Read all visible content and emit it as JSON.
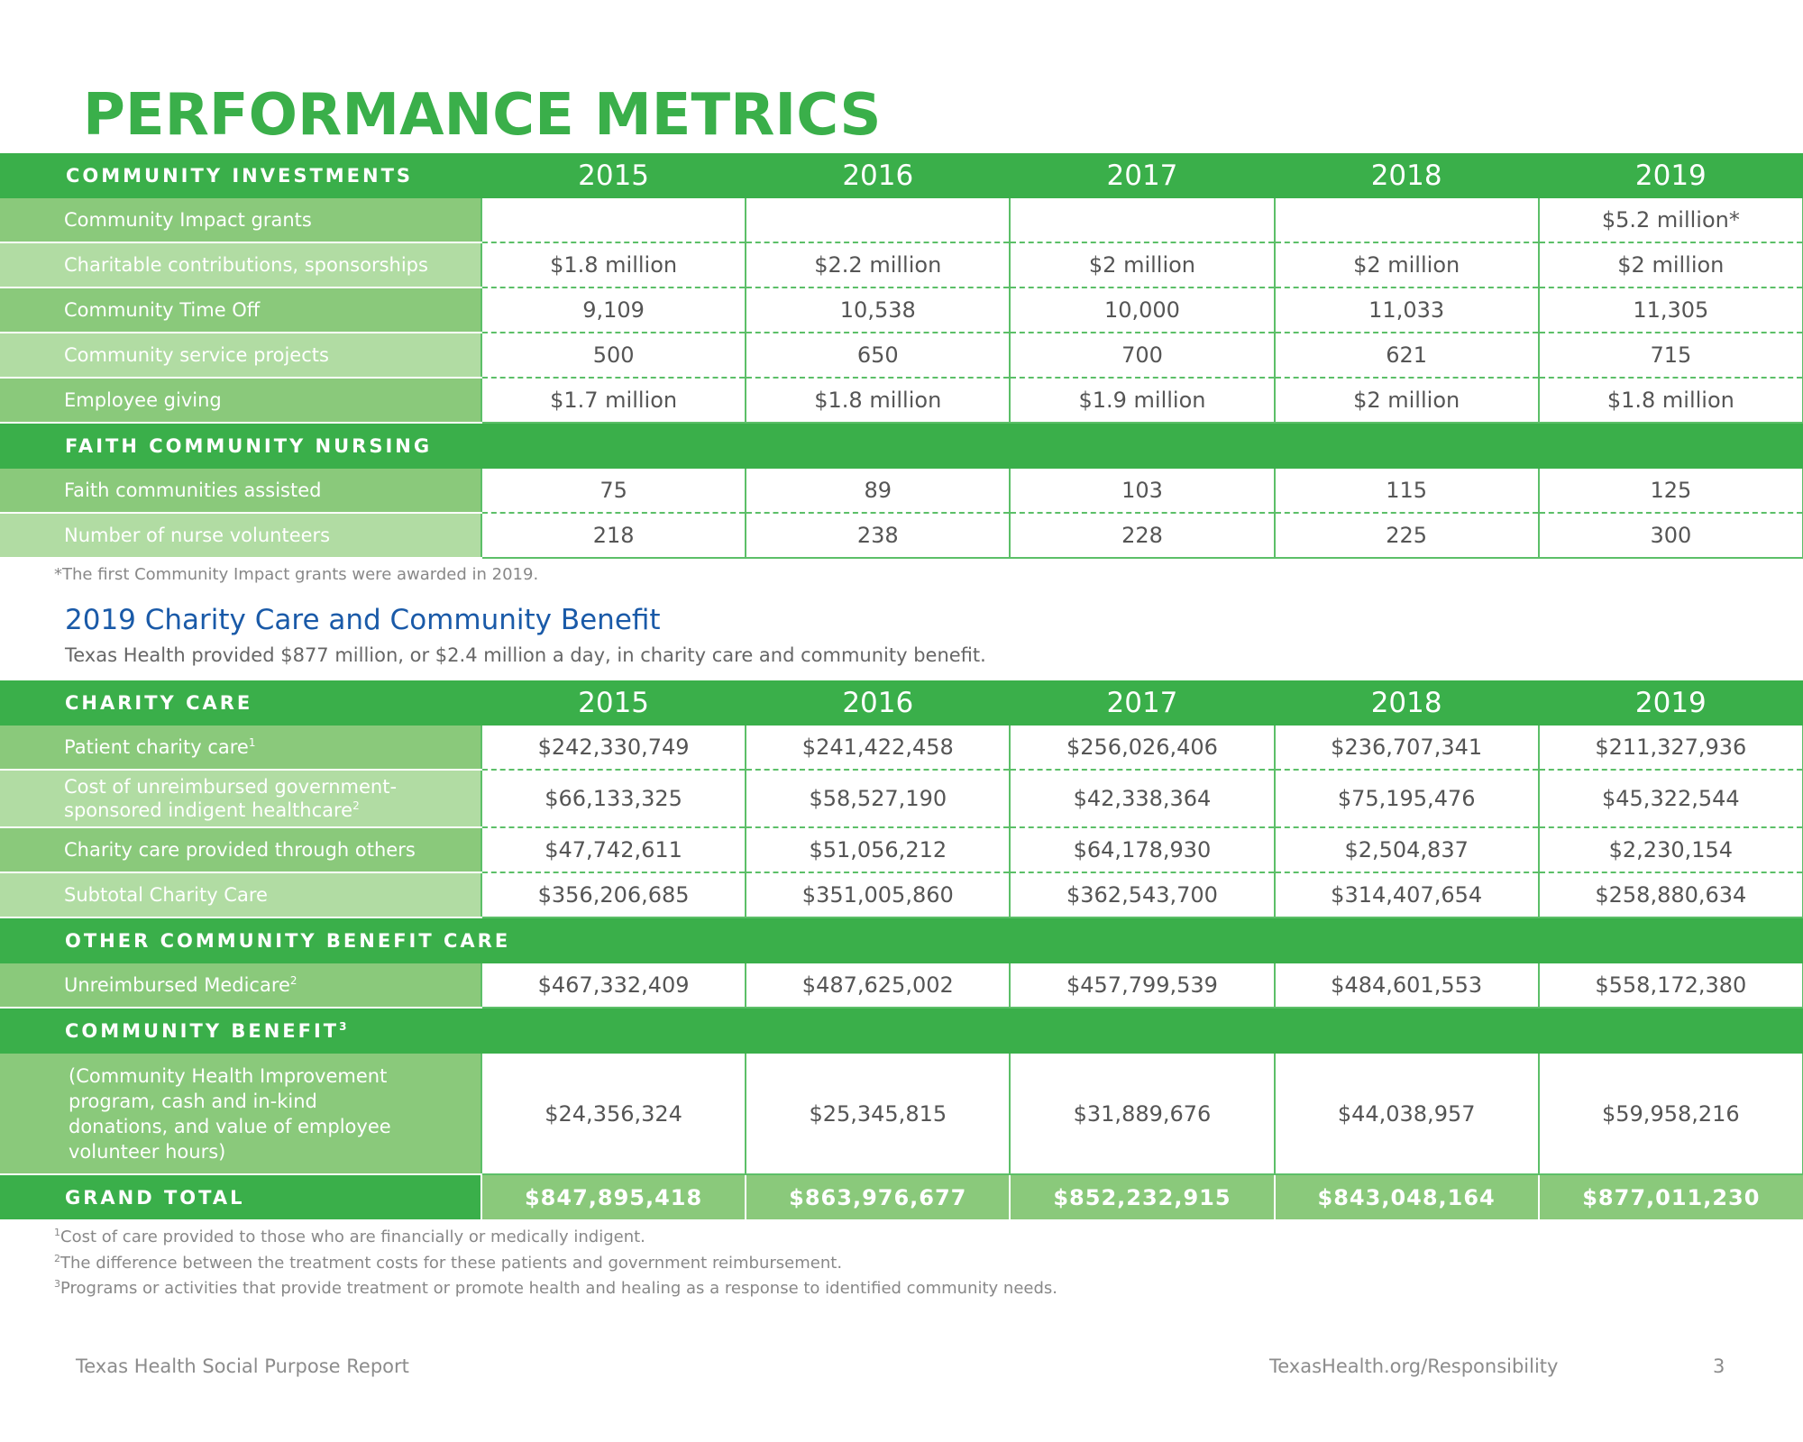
{
  "page_title": "PERFORMANCE METRICS",
  "years": [
    "2015",
    "2016",
    "2017",
    "2018",
    "2019"
  ],
  "community_investments": {
    "header": "COMMUNITY INVESTMENTS",
    "rows": [
      {
        "label": "Community Impact grants",
        "values": [
          "",
          "",
          "",
          "",
          "$5.2 million*"
        ]
      },
      {
        "label": "Charitable contributions, sponsorships",
        "values": [
          "$1.8 million",
          "$2.2 million",
          "$2 million",
          "$2 million",
          "$2 million"
        ]
      },
      {
        "label": "Community Time Off",
        "values": [
          "9,109",
          "10,538",
          "10,000",
          "11,033",
          "11,305"
        ]
      },
      {
        "label": "Community service projects",
        "values": [
          "500",
          "650",
          "700",
          "621",
          "715"
        ]
      },
      {
        "label": "Employee giving",
        "values": [
          "$1.7 million",
          "$1.8 million",
          "$1.9 million",
          "$2 million",
          "$1.8 million"
        ]
      }
    ]
  },
  "faith_community_nursing": {
    "header": "FAITH COMMUNITY NURSING",
    "rows": [
      {
        "label": "Faith communities assisted",
        "values": [
          "75",
          "89",
          "103",
          "115",
          "125"
        ]
      },
      {
        "label": "Number of nurse volunteers",
        "values": [
          "218",
          "238",
          "228",
          "225",
          "300"
        ]
      }
    ]
  },
  "grants_note": "*The first Community Impact grants were awarded in 2019.",
  "charity_section": {
    "title": "2019 Charity Care and Community Benefit",
    "subtitle": "Texas Health provided $877 million, or $2.4 million a day, in charity care and community benefit."
  },
  "charity_care": {
    "header": "CHARITY CARE",
    "rows": [
      {
        "label": "Patient charity care",
        "sup": "1",
        "values": [
          "$242,330,749",
          "$241,422,458",
          "$256,026,406",
          "$236,707,341",
          "$211,327,936"
        ]
      },
      {
        "label_line1": "Cost of unreimbursed government-",
        "label_line2": "sponsored indigent healthcare",
        "sup": "2",
        "values": [
          "$66,133,325",
          "$58,527,190",
          "$42,338,364",
          "$75,195,476",
          "$45,322,544"
        ]
      },
      {
        "label": "Charity care provided through others",
        "values": [
          "$47,742,611",
          "$51,056,212",
          "$64,178,930",
          "$2,504,837",
          "$2,230,154"
        ]
      },
      {
        "label": "Subtotal Charity Care",
        "values": [
          "$356,206,685",
          "$351,005,860",
          "$362,543,700",
          "$314,407,654",
          "$258,880,634"
        ]
      }
    ]
  },
  "other_benefit": {
    "header": "OTHER COMMUNITY BENEFIT CARE",
    "rows": [
      {
        "label": "Unreimbursed Medicare",
        "sup": "2",
        "values": [
          "$467,332,409",
          "$487,625,002",
          "$457,799,539",
          "$484,601,553",
          "$558,172,380"
        ]
      }
    ]
  },
  "community_benefit": {
    "header": "COMMUNITY BENEFIT",
    "header_sup": "3",
    "rows": [
      {
        "lines": [
          "(Community Health Improvement",
          "program, cash and in-kind",
          "donations, and value of employee",
          "volunteer hours)"
        ],
        "values": [
          "$24,356,324",
          "$25,345,815",
          "$31,889,676",
          "$44,038,957",
          "$59,958,216"
        ]
      }
    ]
  },
  "grand_total": {
    "label": "GRAND TOTAL",
    "values": [
      "$847,895,418",
      "$863,976,677",
      "$852,232,915",
      "$843,048,164",
      "$877,011,230"
    ]
  },
  "footnotes": [
    {
      "num": "1",
      "text": "Cost of care provided to those who are financially or medically indigent."
    },
    {
      "num": "2",
      "text": "The difference between the treatment costs for these patients and government reimbursement."
    },
    {
      "num": "3",
      "text": "Programs or activities that provide treatment or promote health and healing as a response to identified community needs."
    }
  ],
  "footer": {
    "left": "Texas Health Social Purpose Report",
    "url": "TexasHealth.org/Responsibility",
    "page_number": "3"
  },
  "colors": {
    "title_green": "#3aaf4a",
    "header_green": "#3aaf4a",
    "label_green": "#8ac97b",
    "label_light_green": "#b1dca3",
    "section_blue": "#1a5aa8"
  }
}
